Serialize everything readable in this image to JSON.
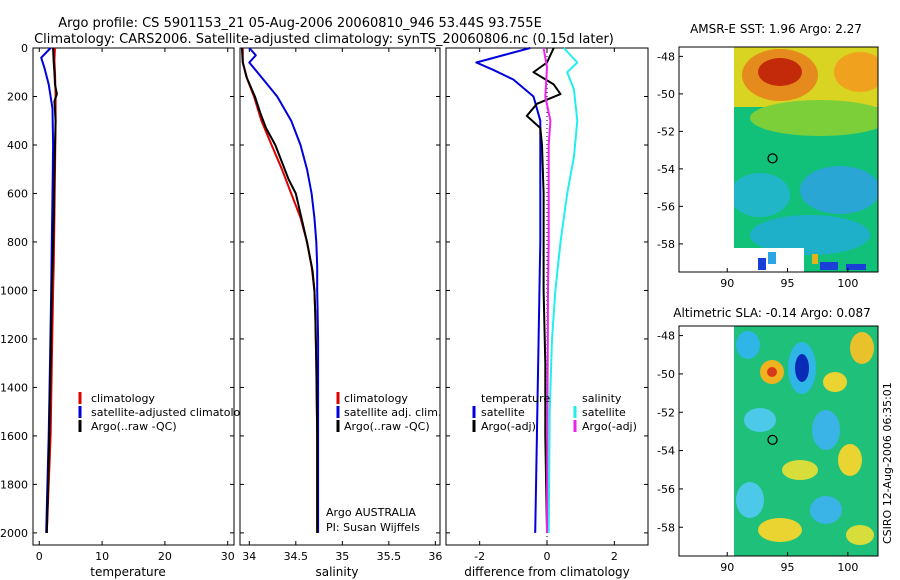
{
  "header": {
    "line1": "Argo profile: CS 5901153_21 05-Aug-2006 20060810_946 53.44S 93.755E",
    "line2": "Climatology: CARS2006. Satellite-adjusted climatology: synTS_20060806.nc (0.15d later)"
  },
  "side_credit": "CSIRO 12-Aug-2006 06:35:01",
  "colors": {
    "climatology": "#dd0000",
    "satellite": "#0000dd",
    "argo": "#000000",
    "salinity_satellite": "#22eeee",
    "salinity_argo": "#ee22ee"
  },
  "chart_data": [
    {
      "type": "line",
      "xlabel": "temperature",
      "ylabel": "",
      "xlim": [
        -1,
        31
      ],
      "ylim": [
        2050,
        0
      ],
      "y_reversed": true,
      "xticks": [
        0,
        10,
        20,
        30
      ],
      "yticks": [
        0,
        200,
        400,
        600,
        800,
        1000,
        1200,
        1400,
        1600,
        1800,
        2000
      ],
      "legend": [
        "climatology",
        "satellite-adjusted climatology",
        "Argo(..raw -QC)"
      ],
      "series": [
        {
          "name": "climatology",
          "color": "#dd0000",
          "points": [
            [
              2.5,
              0
            ],
            [
              2.4,
              50
            ],
            [
              2.5,
              100
            ],
            [
              2.6,
              200
            ],
            [
              2.6,
              300
            ],
            [
              2.5,
              500
            ],
            [
              2.4,
              700
            ],
            [
              2.3,
              900
            ],
            [
              2.2,
              1000
            ],
            [
              2.0,
              1300
            ],
            [
              1.8,
              1600
            ],
            [
              1.5,
              1800
            ],
            [
              1.2,
              2000
            ]
          ]
        },
        {
          "name": "satellite-adjusted climatology",
          "color": "#0000dd",
          "points": [
            [
              1.8,
              0
            ],
            [
              0.3,
              40
            ],
            [
              0.8,
              80
            ],
            [
              1.5,
              150
            ],
            [
              2.1,
              250
            ],
            [
              2.2,
              400
            ],
            [
              2.1,
              600
            ],
            [
              2.0,
              800
            ],
            [
              1.9,
              1000
            ],
            [
              1.7,
              1300
            ],
            [
              1.5,
              1600
            ],
            [
              1.3,
              1800
            ],
            [
              1.1,
              2000
            ]
          ]
        },
        {
          "name": "Argo(..raw -QC)",
          "color": "#000000",
          "points": [
            [
              2.2,
              0
            ],
            [
              2.3,
              60
            ],
            [
              2.4,
              100
            ],
            [
              2.5,
              150
            ],
            [
              2.8,
              190
            ],
            [
              2.4,
              220
            ],
            [
              2.6,
              300
            ],
            [
              2.5,
              400
            ],
            [
              2.4,
              500
            ],
            [
              2.3,
              700
            ],
            [
              2.1,
              900
            ],
            [
              2.0,
              1000
            ],
            [
              1.8,
              1300
            ],
            [
              1.6,
              1600
            ],
            [
              1.4,
              1800
            ],
            [
              1.2,
              2000
            ]
          ]
        }
      ]
    },
    {
      "type": "line",
      "xlabel": "salinity",
      "ylabel": "",
      "xlim": [
        33.9,
        36.05
      ],
      "ylim": [
        2050,
        0
      ],
      "y_reversed": true,
      "xticks": [
        34,
        34.5,
        35,
        35.5,
        36
      ],
      "xticklabels": [
        "34",
        "34.5",
        "35",
        "35.5",
        "36"
      ],
      "legend": [
        "climatology",
        "satellite adj. clim.",
        "Argo(..raw -QC)"
      ],
      "annotations": [
        "Argo AUSTRALIA",
        "PI: Susan Wijffels"
      ],
      "series": [
        {
          "name": "climatology",
          "color": "#dd0000",
          "points": [
            [
              33.93,
              0
            ],
            [
              33.93,
              60
            ],
            [
              33.98,
              130
            ],
            [
              34.05,
              200
            ],
            [
              34.13,
              300
            ],
            [
              34.24,
              400
            ],
            [
              34.35,
              500
            ],
            [
              34.45,
              600
            ],
            [
              34.55,
              700
            ],
            [
              34.62,
              800
            ],
            [
              34.67,
              900
            ],
            [
              34.7,
              1000
            ],
            [
              34.71,
              1100
            ],
            [
              34.72,
              1300
            ],
            [
              34.73,
              1600
            ],
            [
              34.73,
              2000
            ]
          ]
        },
        {
          "name": "satellite adj. clim.",
          "color": "#0000dd",
          "points": [
            [
              34.0,
              0
            ],
            [
              34.07,
              30
            ],
            [
              34.0,
              60
            ],
            [
              34.13,
              120
            ],
            [
              34.3,
              200
            ],
            [
              34.45,
              300
            ],
            [
              34.55,
              400
            ],
            [
              34.62,
              500
            ],
            [
              34.67,
              600
            ],
            [
              34.7,
              700
            ],
            [
              34.72,
              800
            ],
            [
              34.73,
              900
            ],
            [
              34.73,
              1000
            ],
            [
              34.74,
              1200
            ],
            [
              34.74,
              1500
            ],
            [
              34.74,
              2000
            ]
          ]
        },
        {
          "name": "Argo(..raw -QC)",
          "color": "#000000",
          "points": [
            [
              33.92,
              0
            ],
            [
              33.93,
              60
            ],
            [
              33.97,
              120
            ],
            [
              34.06,
              200
            ],
            [
              34.12,
              270
            ],
            [
              34.18,
              330
            ],
            [
              34.28,
              400
            ],
            [
              34.36,
              480
            ],
            [
              34.42,
              540
            ],
            [
              34.5,
              600
            ],
            [
              34.56,
              700
            ],
            [
              34.62,
              800
            ],
            [
              34.66,
              880
            ],
            [
              34.68,
              920
            ],
            [
              34.7,
              1000
            ],
            [
              34.71,
              1100
            ],
            [
              34.72,
              1300
            ],
            [
              34.73,
              1600
            ],
            [
              34.73,
              2000
            ]
          ]
        }
      ]
    },
    {
      "type": "line",
      "xlabel": "difference from climatology",
      "ylabel": "",
      "xlim": [
        -3,
        3
      ],
      "ylim": [
        2050,
        0
      ],
      "y_reversed": true,
      "xticks": [
        -2,
        0,
        2
      ],
      "legend_left_title": "temperature",
      "legend_right_title": "salinity",
      "legend": [
        "satellite",
        "Argo(-adj)",
        "satellite",
        "Argo(-adj)"
      ],
      "series": [
        {
          "name": "satellite",
          "group": "temperature",
          "color": "#0000dd",
          "points": [
            [
              -0.5,
              0
            ],
            [
              -2.1,
              60
            ],
            [
              -1.6,
              90
            ],
            [
              -1.0,
              130
            ],
            [
              -0.4,
              200
            ],
            [
              -0.2,
              300
            ],
            [
              -0.2,
              500
            ],
            [
              -0.2,
              800
            ],
            [
              -0.25,
              1200
            ],
            [
              -0.3,
              1600
            ],
            [
              -0.35,
              2000
            ]
          ]
        },
        {
          "name": "Argo(-adj)",
          "group": "temperature",
          "color": "#000000",
          "points": [
            [
              0.2,
              0
            ],
            [
              0.0,
              60
            ],
            [
              -0.4,
              100
            ],
            [
              0.2,
              150
            ],
            [
              0.4,
              190
            ],
            [
              -0.3,
              230
            ],
            [
              -0.6,
              280
            ],
            [
              -0.2,
              330
            ],
            [
              -0.15,
              400
            ],
            [
              -0.1,
              600
            ],
            [
              -0.1,
              800
            ],
            [
              -0.1,
              1000
            ],
            [
              -0.05,
              1300
            ],
            [
              -0.05,
              1600
            ],
            [
              0.0,
              2000
            ]
          ]
        },
        {
          "name": "satellite",
          "group": "salinity",
          "color": "#22eeee",
          "points": [
            [
              0.5,
              0
            ],
            [
              0.9,
              60
            ],
            [
              0.6,
              100
            ],
            [
              0.8,
              170
            ],
            [
              0.9,
              300
            ],
            [
              0.8,
              450
            ],
            [
              0.6,
              600
            ],
            [
              0.4,
              800
            ],
            [
              0.25,
              1000
            ],
            [
              0.15,
              1200
            ],
            [
              0.08,
              1500
            ],
            [
              0.05,
              2000
            ]
          ]
        },
        {
          "name": "Argo(-adj)",
          "group": "salinity",
          "color": "#ee22ee",
          "points": [
            [
              -0.1,
              0
            ],
            [
              0.0,
              80
            ],
            [
              -0.05,
              200
            ],
            [
              0.1,
              300
            ],
            [
              0.05,
              400
            ],
            [
              0.05,
              600
            ],
            [
              0.05,
              800
            ],
            [
              0.03,
              1000
            ],
            [
              0.02,
              1300
            ],
            [
              0.01,
              1600
            ],
            [
              0.0,
              2000
            ]
          ]
        }
      ]
    },
    {
      "type": "heatmap",
      "title": "AMSR-E SST: 1.96 Argo: 2.27",
      "xlim": [
        86,
        102.5
      ],
      "ylim": [
        -59.5,
        -47.5
      ],
      "xticks": [
        90,
        95,
        100
      ],
      "yticks": [
        -48,
        -50,
        -52,
        -54,
        -56,
        -58
      ],
      "data_extent_x": [
        90,
        102.5
      ],
      "marker": {
        "lon": 93.755,
        "lat": -53.44
      }
    },
    {
      "type": "heatmap",
      "title": "Altimetric SLA: -0.14 Argo: 0.087",
      "xlim": [
        86,
        102.5
      ],
      "ylim": [
        -59.5,
        -47.5
      ],
      "xticks": [
        90,
        95,
        100
      ],
      "yticks": [
        -48,
        -50,
        -52,
        -54,
        -56,
        -58
      ],
      "data_extent_x": [
        90,
        102.5
      ],
      "marker": {
        "lon": 93.755,
        "lat": -53.44
      }
    }
  ]
}
